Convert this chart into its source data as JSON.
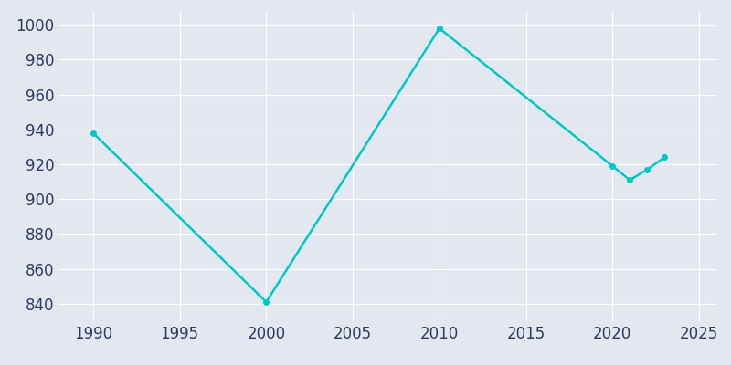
{
  "years": [
    1990,
    2000,
    2010,
    2020,
    2021,
    2022,
    2023
  ],
  "population": [
    938,
    841,
    998,
    919,
    911,
    917,
    924
  ],
  "line_color": "#00C8C8",
  "background_color": "#E3E8F0",
  "plot_bg_color": "#E3E8F0",
  "grid_color": "#FFFFFF",
  "text_color": "#2E3A5C",
  "xlim": [
    1988,
    2026
  ],
  "ylim": [
    830,
    1008
  ],
  "xticks": [
    1990,
    1995,
    2000,
    2005,
    2010,
    2015,
    2020,
    2025
  ],
  "yticks": [
    840,
    860,
    880,
    900,
    920,
    940,
    960,
    980,
    1000
  ],
  "linewidth": 1.8,
  "marker": "o",
  "markersize": 4,
  "tick_labelsize": 12
}
